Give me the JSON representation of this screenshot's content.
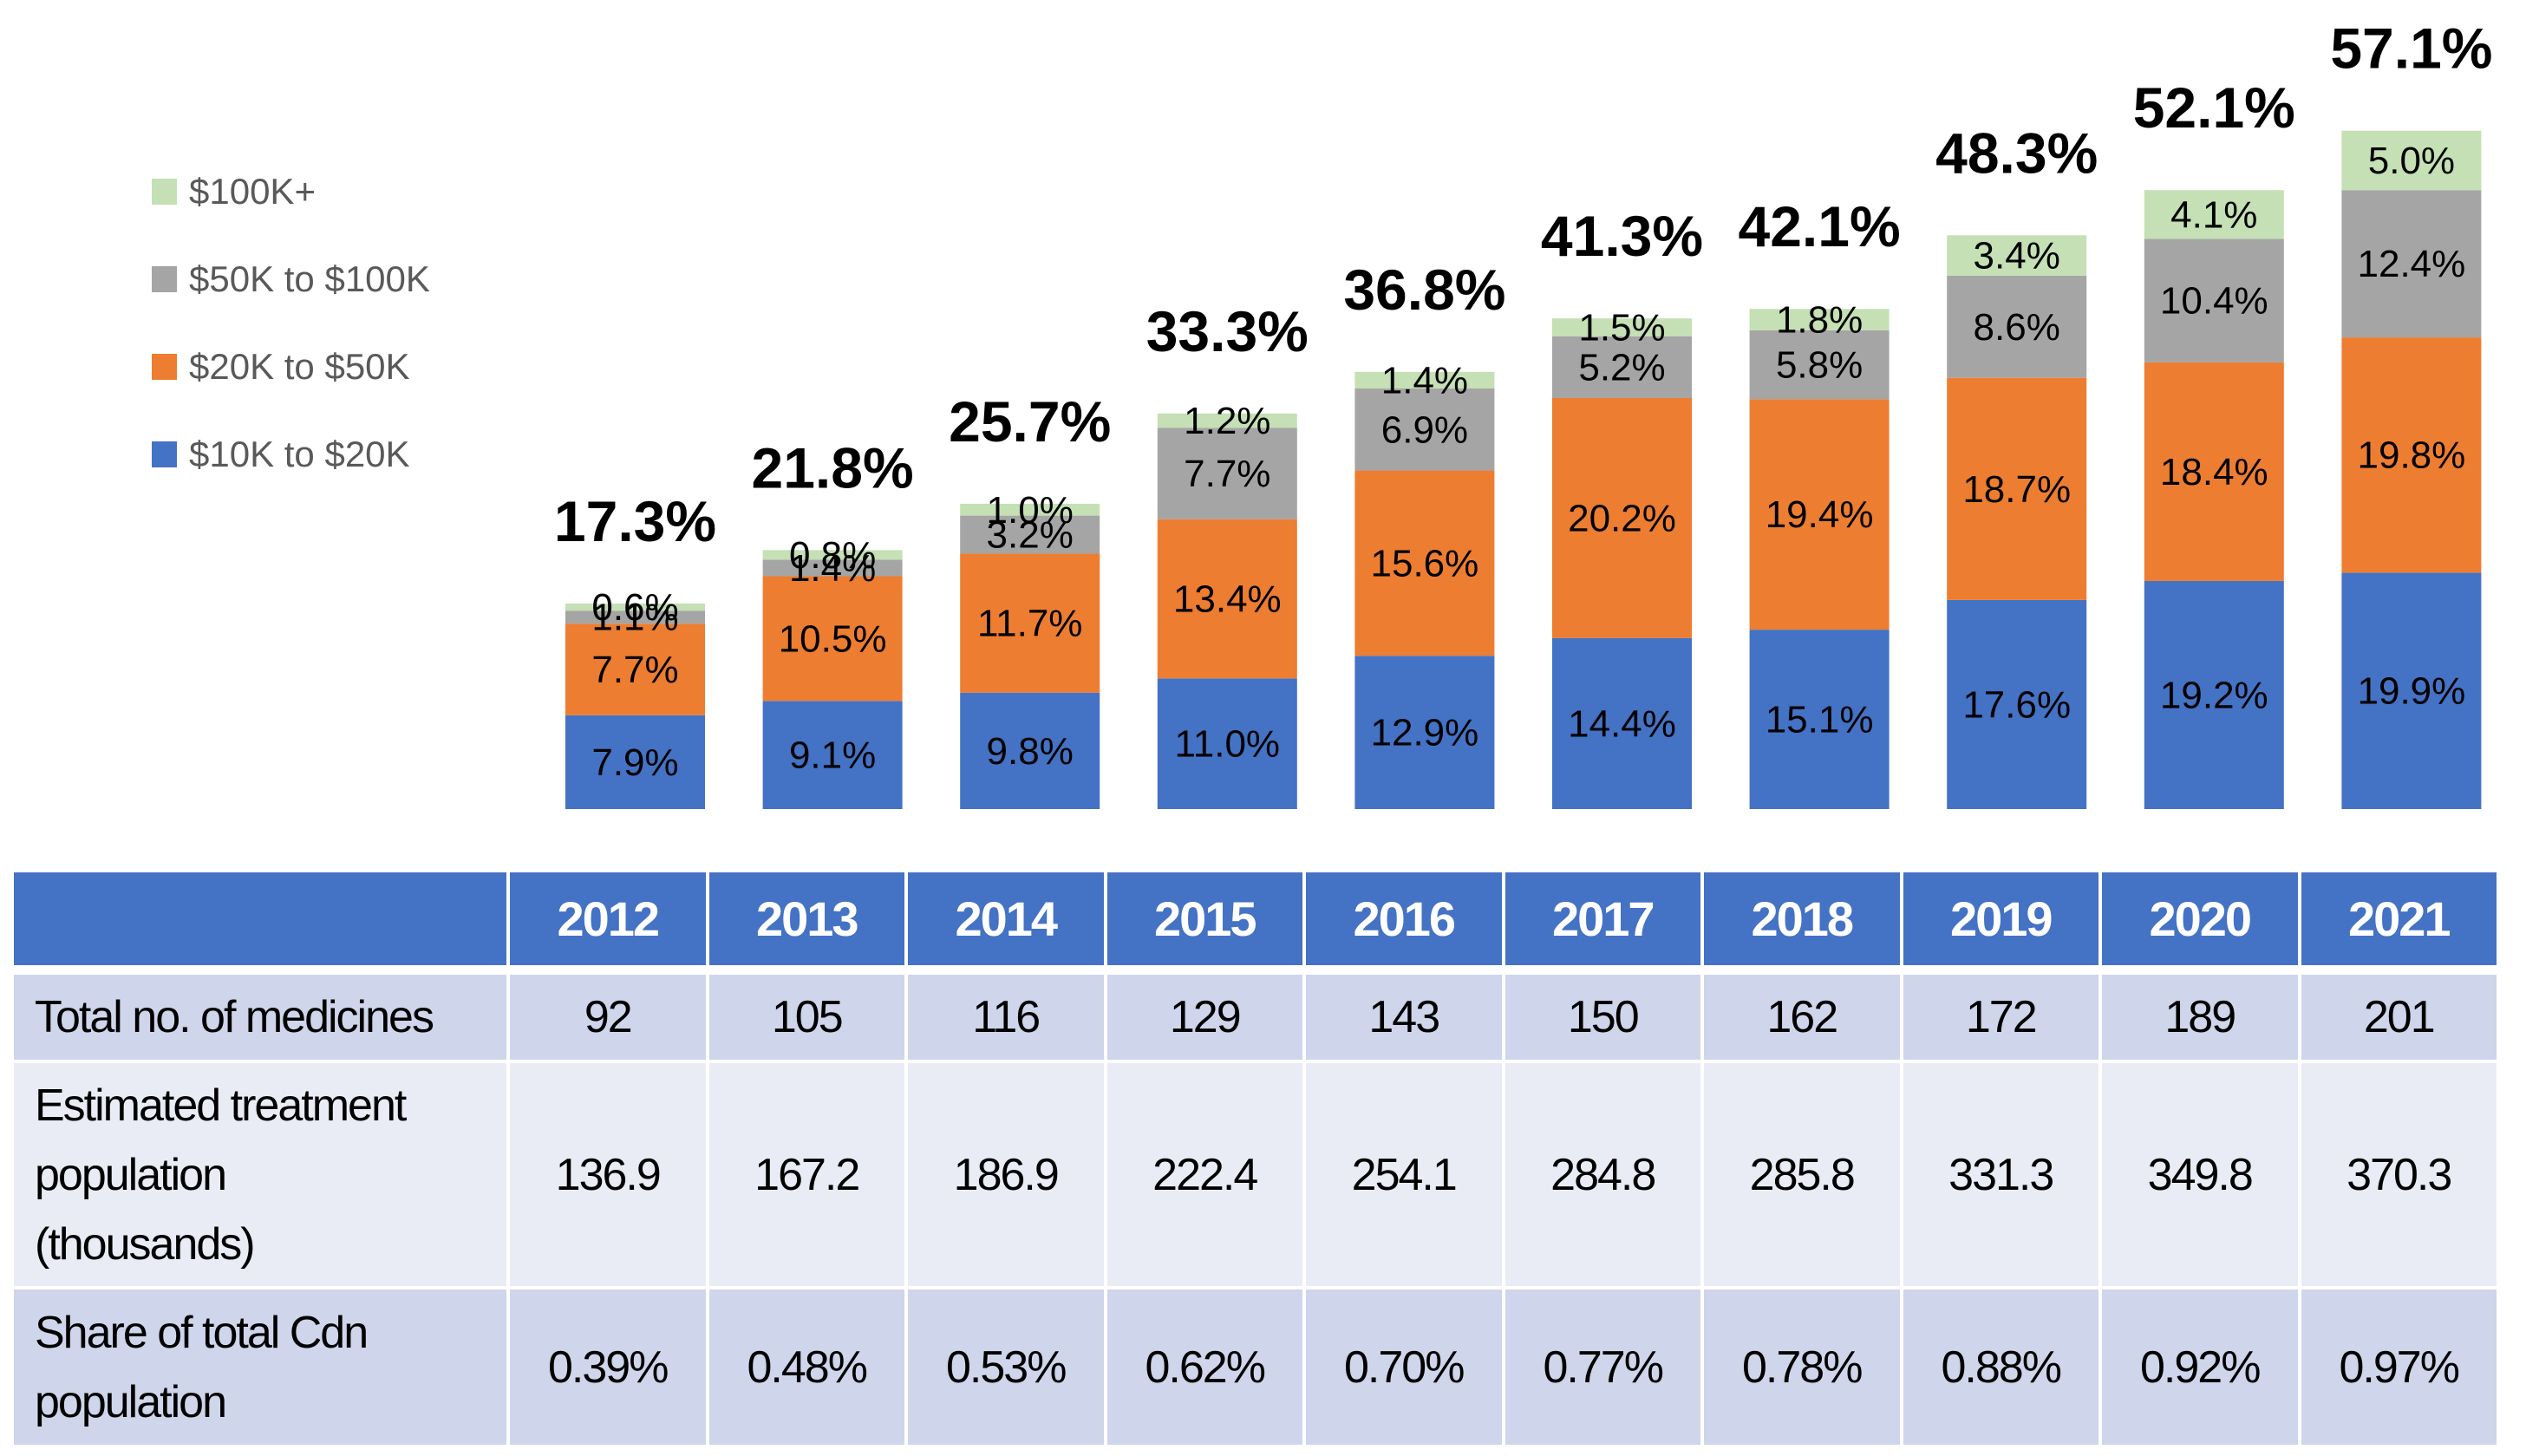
{
  "chart_data": {
    "type": "bar",
    "stacked": true,
    "title": "",
    "xlabel": "",
    "ylabel": "",
    "categories": [
      "2012",
      "2013",
      "2014",
      "2015",
      "2016",
      "2017",
      "2018",
      "2019",
      "2020",
      "2021"
    ],
    "series": [
      {
        "name": "$10K to $20K",
        "color": "#4472C4",
        "values": [
          7.9,
          9.1,
          9.8,
          11.0,
          12.9,
          14.4,
          15.1,
          17.6,
          19.2,
          19.9
        ],
        "labels": [
          "7.9%",
          "9.1%",
          "9.8%",
          "11.0%",
          "12.9%",
          "14.4%",
          "15.1%",
          "17.6%",
          "19.2%",
          "19.9%"
        ]
      },
      {
        "name": "$20K to $50K",
        "color": "#ED7D31",
        "values": [
          7.7,
          10.5,
          11.7,
          13.4,
          15.6,
          20.2,
          19.4,
          18.7,
          18.4,
          19.8
        ],
        "labels": [
          "7.7%",
          "10.5%",
          "11.7%",
          "13.4%",
          "15.6%",
          "20.2%",
          "19.4%",
          "18.7%",
          "18.4%",
          "19.8%"
        ]
      },
      {
        "name": "$50K to $100K",
        "color": "#A5A5A5",
        "values": [
          1.1,
          1.4,
          3.2,
          7.7,
          6.9,
          5.2,
          5.8,
          8.6,
          10.4,
          12.4
        ],
        "labels": [
          "1.1%",
          "1.4%",
          "3.2%",
          "7.7%",
          "6.9%",
          "5.2%",
          "5.8%",
          "8.6%",
          "10.4%",
          "12.4%"
        ]
      },
      {
        "name": "$100K+",
        "color": "#C5E0B4",
        "values": [
          0.6,
          0.8,
          1.0,
          1.2,
          1.4,
          1.5,
          1.8,
          3.4,
          4.1,
          5.0
        ],
        "labels": [
          "0.6%",
          "0.8%",
          "1.0%",
          "1.2%",
          "1.4%",
          "1.5%",
          "1.8%",
          "3.4%",
          "4.1%",
          "5.0%"
        ]
      }
    ],
    "totals": [
      17.3,
      21.8,
      25.7,
      33.3,
      36.8,
      41.3,
      42.1,
      48.3,
      52.1,
      57.1
    ],
    "total_labels": [
      "17.3%",
      "21.8%",
      "25.7%",
      "33.3%",
      "36.8%",
      "41.3%",
      "42.1%",
      "48.3%",
      "52.1%",
      "57.1%"
    ],
    "ylim": [
      0,
      60
    ],
    "grid": false,
    "legend": {
      "placement": "top-left",
      "order": [
        "$100K+",
        "$50K to $100K",
        "$20K to $50K",
        "$10K to $20K"
      ]
    }
  },
  "legend": {
    "items": [
      {
        "label": "$100K+",
        "color": "#C5E0B4"
      },
      {
        "label": "$50K to $100K",
        "color": "#A5A5A5"
      },
      {
        "label": "$20K to $50K",
        "color": "#ED7D31"
      },
      {
        "label": "$10K to $20K",
        "color": "#4472C4"
      }
    ]
  },
  "table": {
    "header_color": "#4472C4",
    "years": [
      "2012",
      "2013",
      "2014",
      "2015",
      "2016",
      "2017",
      "2018",
      "2019",
      "2020",
      "2021"
    ],
    "rows": [
      {
        "label": [
          "Total no. of medicines"
        ],
        "values": [
          "92",
          "105",
          "116",
          "129",
          "143",
          "150",
          "162",
          "172",
          "189",
          "201"
        ]
      },
      {
        "label": [
          "Estimated treatment",
          "population",
          "(thousands)"
        ],
        "values": [
          "136.9",
          "167.2",
          "186.9",
          "222.4",
          "254.1",
          "284.8",
          "285.8",
          "331.3",
          "349.8",
          "370.3"
        ]
      },
      {
        "label": [
          "Share of total Cdn",
          "population"
        ],
        "values": [
          "0.39%",
          "0.48%",
          "0.53%",
          "0.62%",
          "0.70%",
          "0.77%",
          "0.78%",
          "0.88%",
          "0.92%",
          "0.97%"
        ]
      }
    ]
  }
}
